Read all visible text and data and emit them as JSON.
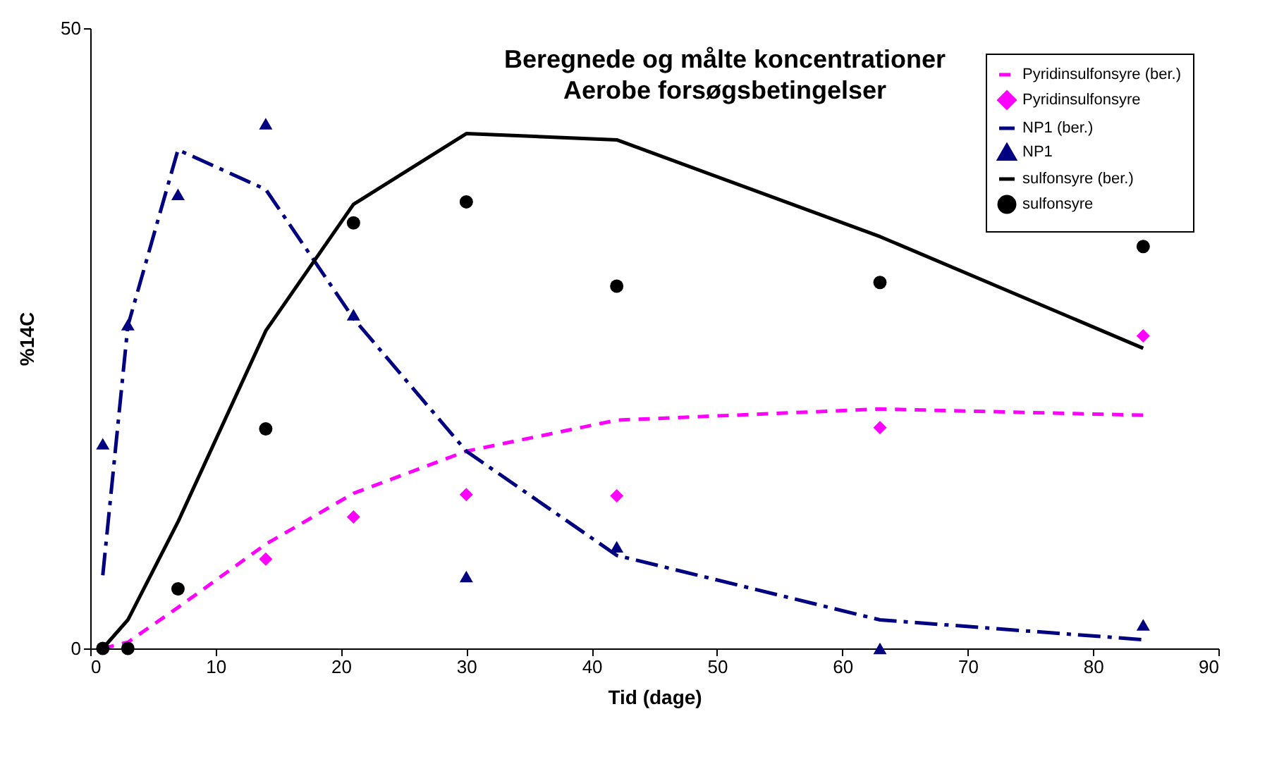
{
  "chart_data": {
    "type": "line",
    "title": "Beregnede og målte koncentrationer",
    "subtitle": "Aerobe forsøgsbetingelser",
    "xlabel": "Tid (dage)",
    "ylabel": "%14C",
    "x": [
      1,
      3,
      7,
      14,
      21,
      30,
      42,
      63,
      84
    ],
    "xlim": [
      0,
      90
    ],
    "xticks": [
      0,
      10,
      20,
      30,
      40,
      50,
      60,
      70,
      80,
      90
    ],
    "ylim": [
      0,
      50
    ],
    "yticks": [
      0,
      50
    ],
    "grid": false,
    "legend": "top right",
    "series": [
      {
        "name": "Pyridinsulfonsyre (ber.)",
        "color": "#ff00ff",
        "line_style": "dashed",
        "values": [
          0,
          0.5,
          3.3,
          8.4,
          12.5,
          15.9,
          18.4,
          19.3,
          18.8
        ]
      },
      {
        "name": "Pyridinsulfonsyre",
        "type": "scatter",
        "color": "#ff00ff",
        "marker": "diamond",
        "values": [
          null,
          null,
          null,
          7.2,
          10.6,
          12.4,
          12.3,
          17.8,
          25.2
        ]
      },
      {
        "name": "NP1 (ber.)",
        "color": "#000080",
        "line_style": "dashdot",
        "values": [
          5.9,
          26,
          40.2,
          37.0,
          26.6,
          15.9,
          7.5,
          2.3,
          0.7
        ]
      },
      {
        "name": "NP1",
        "type": "scatter",
        "color": "#000080",
        "marker": "triangle",
        "values": [
          16.5,
          26.1,
          36.6,
          42.3,
          26.9,
          5.8,
          8.2,
          0,
          1.9
        ]
      },
      {
        "name": "sulfonsyre (ber.)",
        "color": "#000000",
        "line_style": "solid",
        "values": [
          0,
          2.3,
          10.2,
          25.6,
          35.8,
          41.5,
          41.0,
          33.2,
          24.2
        ]
      },
      {
        "name": "sulfonsyre",
        "type": "scatter",
        "color": "#000000",
        "marker": "circle",
        "values": [
          0,
          0,
          4.8,
          17.7,
          34.3,
          36.0,
          29.2,
          29.5,
          32.4
        ]
      }
    ]
  }
}
